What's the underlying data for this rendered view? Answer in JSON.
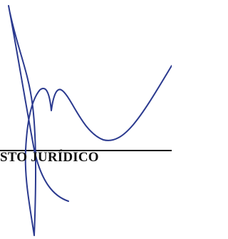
{
  "signature_block": {
    "label": "STO JURÍDICO"
  }
}
